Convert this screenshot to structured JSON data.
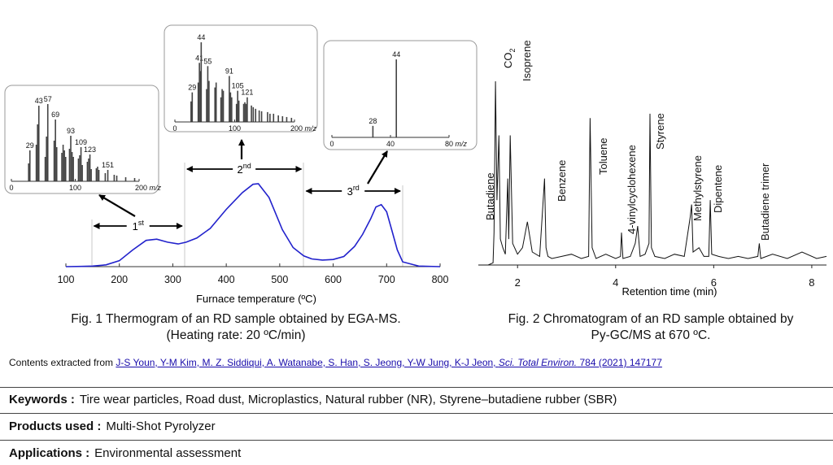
{
  "fig1": {
    "caption_line1": "Fig. 1 Thermogram of an RD sample obtained by EGA-MS.",
    "caption_line2": "(Heating rate: 20 ºC/min)",
    "chart_data": {
      "type": "line",
      "xlabel": "Furnace temperature (ºC)",
      "ylabel": "",
      "xlim": [
        100,
        800
      ],
      "xticks": [
        "100",
        "200",
        "300",
        "400",
        "500",
        "600",
        "700",
        "800"
      ],
      "grid": false,
      "line_color": "#2222cc",
      "x": [
        100,
        130,
        150,
        175,
        200,
        225,
        250,
        270,
        290,
        310,
        325,
        345,
        370,
        400,
        430,
        450,
        460,
        480,
        505,
        525,
        545,
        560,
        580,
        600,
        620,
        640,
        655,
        670,
        680,
        690,
        700,
        710,
        720,
        730,
        760,
        800
      ],
      "y": [
        0,
        0.2,
        0.5,
        1.5,
        5,
        14,
        22,
        23,
        20.5,
        19,
        20.5,
        24,
        32,
        48,
        62,
        69,
        69.5,
        58,
        31,
        16,
        9,
        6.5,
        5.5,
        6,
        8.5,
        17,
        27,
        40,
        50,
        52,
        46,
        30,
        14,
        4,
        0.5,
        0
      ],
      "regions": [
        {
          "label": "1",
          "sup": "st",
          "range": [
            148,
            322
          ]
        },
        {
          "label": "2",
          "sup": "nd",
          "range": [
            322,
            545
          ]
        },
        {
          "label": "3",
          "sup": "rd",
          "range": [
            545,
            730
          ]
        }
      ]
    },
    "insets": [
      {
        "xticks": [
          "0",
          "100",
          "200"
        ],
        "xunit": "m/z",
        "xlim": [
          0,
          200
        ],
        "peaks": [
          {
            "mz": 27,
            "h": 0.22
          },
          {
            "mz": 29,
            "h": 0.38,
            "label": "29"
          },
          {
            "mz": 39,
            "h": 0.45
          },
          {
            "mz": 41,
            "h": 0.7
          },
          {
            "mz": 43,
            "h": 0.93,
            "label": "43"
          },
          {
            "mz": 53,
            "h": 0.3
          },
          {
            "mz": 55,
            "h": 0.55
          },
          {
            "mz": 57,
            "h": 0.95,
            "label": "57"
          },
          {
            "mz": 67,
            "h": 0.5
          },
          {
            "mz": 69,
            "h": 0.76,
            "label": "69"
          },
          {
            "mz": 71,
            "h": 0.42
          },
          {
            "mz": 79,
            "h": 0.35
          },
          {
            "mz": 81,
            "h": 0.45
          },
          {
            "mz": 83,
            "h": 0.38
          },
          {
            "mz": 85,
            "h": 0.3
          },
          {
            "mz": 91,
            "h": 0.4
          },
          {
            "mz": 93,
            "h": 0.56,
            "label": "93"
          },
          {
            "mz": 95,
            "h": 0.36
          },
          {
            "mz": 97,
            "h": 0.3
          },
          {
            "mz": 105,
            "h": 0.28
          },
          {
            "mz": 107,
            "h": 0.32
          },
          {
            "mz": 109,
            "h": 0.42,
            "label": "109"
          },
          {
            "mz": 111,
            "h": 0.2
          },
          {
            "mz": 119,
            "h": 0.24
          },
          {
            "mz": 121,
            "h": 0.28
          },
          {
            "mz": 123,
            "h": 0.33,
            "label": "123"
          },
          {
            "mz": 125,
            "h": 0.15
          },
          {
            "mz": 133,
            "h": 0.16
          },
          {
            "mz": 135,
            "h": 0.18
          },
          {
            "mz": 137,
            "h": 0.14
          },
          {
            "mz": 147,
            "h": 0.1
          },
          {
            "mz": 151,
            "h": 0.14,
            "label": "151"
          },
          {
            "mz": 161,
            "h": 0.08
          },
          {
            "mz": 165,
            "h": 0.07
          },
          {
            "mz": 179,
            "h": 0.05
          },
          {
            "mz": 193,
            "h": 0.04
          }
        ]
      },
      {
        "xticks": [
          "0",
          "100",
          "200"
        ],
        "xunit": "m/z",
        "xlim": [
          0,
          200
        ],
        "peaks": [
          {
            "mz": 27,
            "h": 0.25
          },
          {
            "mz": 29,
            "h": 0.36,
            "label": "29"
          },
          {
            "mz": 39,
            "h": 0.48
          },
          {
            "mz": 41,
            "h": 0.72,
            "label": "41"
          },
          {
            "mz": 43,
            "h": 0.62
          },
          {
            "mz": 44,
            "h": 0.97,
            "label": "44"
          },
          {
            "mz": 53,
            "h": 0.4
          },
          {
            "mz": 55,
            "h": 0.68,
            "label": "55"
          },
          {
            "mz": 57,
            "h": 0.5
          },
          {
            "mz": 67,
            "h": 0.42
          },
          {
            "mz": 69,
            "h": 0.48
          },
          {
            "mz": 77,
            "h": 0.3
          },
          {
            "mz": 79,
            "h": 0.4
          },
          {
            "mz": 81,
            "h": 0.38
          },
          {
            "mz": 91,
            "h": 0.56,
            "label": "91"
          },
          {
            "mz": 93,
            "h": 0.36
          },
          {
            "mz": 95,
            "h": 0.3
          },
          {
            "mz": 103,
            "h": 0.22
          },
          {
            "mz": 105,
            "h": 0.38,
            "label": "105"
          },
          {
            "mz": 107,
            "h": 0.26
          },
          {
            "mz": 115,
            "h": 0.22
          },
          {
            "mz": 117,
            "h": 0.24
          },
          {
            "mz": 119,
            "h": 0.22
          },
          {
            "mz": 121,
            "h": 0.3,
            "label": "121"
          },
          {
            "mz": 128,
            "h": 0.2
          },
          {
            "mz": 131,
            "h": 0.18
          },
          {
            "mz": 135,
            "h": 0.16
          },
          {
            "mz": 141,
            "h": 0.14
          },
          {
            "mz": 145,
            "h": 0.13
          },
          {
            "mz": 155,
            "h": 0.12
          },
          {
            "mz": 159,
            "h": 0.1
          },
          {
            "mz": 165,
            "h": 0.1
          },
          {
            "mz": 173,
            "h": 0.08
          },
          {
            "mz": 180,
            "h": 0.07
          },
          {
            "mz": 187,
            "h": 0.06
          },
          {
            "mz": 195,
            "h": 0.05
          }
        ]
      },
      {
        "xticks": [
          "0",
          "40",
          "80"
        ],
        "xunit": "m/z",
        "xlim": [
          0,
          80
        ],
        "peaks": [
          {
            "mz": 28,
            "h": 0.14,
            "label": "28"
          },
          {
            "mz": 44,
            "h": 0.95,
            "label": "44"
          }
        ]
      }
    ]
  },
  "fig2": {
    "caption_line1": "Fig. 2 Chromatogram of an RD sample obtained by",
    "caption_line2": "Py-GC/MS at 670 ºC.",
    "chart_data": {
      "type": "line",
      "xlabel": "Retention time (min)",
      "ylabel": "",
      "xlim": [
        1.2,
        8.3
      ],
      "xticks": [
        "2",
        "4",
        "6",
        "8"
      ],
      "grid": false,
      "line_color": "#111111",
      "x": [
        1.2,
        1.4,
        1.5,
        1.52,
        1.55,
        1.58,
        1.62,
        1.65,
        1.7,
        1.75,
        1.8,
        1.82,
        1.85,
        1.9,
        2.0,
        2.1,
        2.2,
        2.3,
        2.45,
        2.55,
        2.58,
        2.62,
        2.7,
        2.9,
        3.1,
        3.3,
        3.45,
        3.48,
        3.52,
        3.6,
        3.8,
        4.0,
        4.1,
        4.12,
        4.15,
        4.3,
        4.4,
        4.45,
        4.5,
        4.6,
        4.68,
        4.7,
        4.73,
        4.8,
        5.0,
        5.2,
        5.4,
        5.52,
        5.55,
        5.58,
        5.7,
        5.8,
        5.9,
        5.93,
        5.96,
        6.1,
        6.3,
        6.5,
        6.7,
        6.9,
        6.93,
        6.96,
        7.2,
        7.5,
        7.8,
        8.1,
        8.3
      ],
      "y": [
        0,
        0,
        1,
        15,
        85,
        30,
        60,
        12,
        8,
        5,
        40,
        12,
        60,
        10,
        5,
        8,
        20,
        6,
        4,
        40,
        8,
        4,
        3,
        4,
        5,
        3,
        4,
        68,
        8,
        3,
        5,
        3,
        4,
        15,
        3,
        4,
        10,
        18,
        4,
        5,
        10,
        70,
        8,
        4,
        3,
        5,
        4,
        22,
        28,
        6,
        8,
        4,
        4,
        30,
        5,
        4,
        3,
        4,
        3,
        4,
        10,
        3,
        5,
        3,
        6,
        3,
        4
      ],
      "peaks": [
        {
          "name": "Butadiene",
          "x": 1.55
        },
        {
          "name": "CO2",
          "x": 1.62
        },
        {
          "name": "Isoprene",
          "x": 1.85
        },
        {
          "name": "Benzene",
          "x": 2.58
        },
        {
          "name": "Toluene",
          "x": 3.48
        },
        {
          "name": "4-vinylcyclohexene",
          "x": 4.12
        },
        {
          "name": "Styrene",
          "x": 4.7
        },
        {
          "name": "Methylstyrene",
          "x": 5.55
        },
        {
          "name": "Dipentene",
          "x": 5.93
        },
        {
          "name": "Butadiene trimer",
          "x": 6.93
        }
      ]
    }
  },
  "source": {
    "prefix": "Contents extracted from ",
    "authors": "J-S Youn, Y-M Kim, M. Z. Siddiqui, A. Watanabe, S. Han, S. Jeong, Y-W Jung, K-J Jeon, ",
    "journal": "Sci. Total Environ.",
    "citation": " 784 (2021) 147177"
  },
  "info": {
    "keywords_label": "Keywords :",
    "keywords_value": "Tire wear particles, Road dust, Microplastics, Natural rubber (NR), Styrene–butadiene rubber (SBR)",
    "products_label": "Products used :",
    "products_value": "Multi-Shot Pyrolyzer",
    "applications_label": "Applications :",
    "applications_value": "Environmental assessment"
  }
}
